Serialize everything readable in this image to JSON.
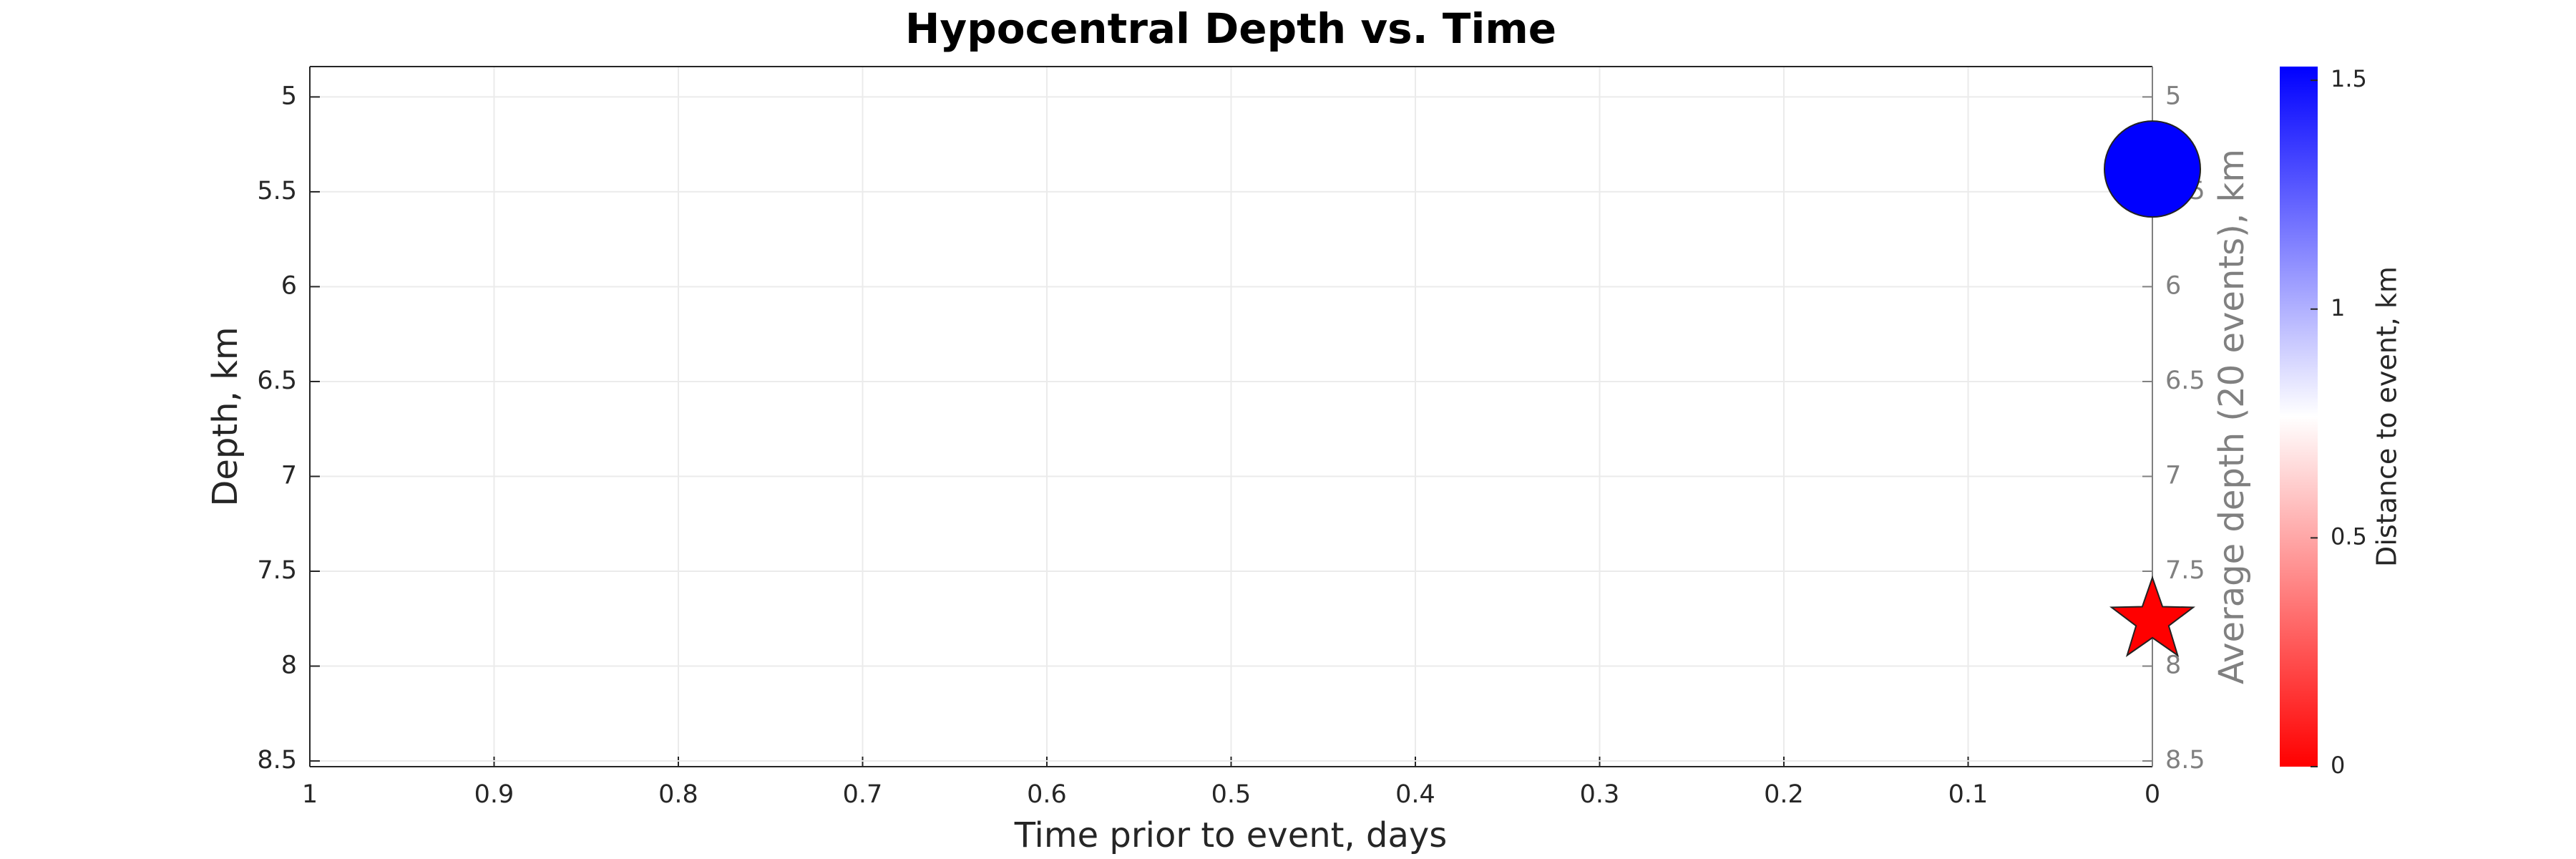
{
  "chart_data": {
    "type": "scatter",
    "title": "Hypocentral Depth vs. Time",
    "xlabel": "Time prior to event, days",
    "ylabel": "Depth, km",
    "y2label": "Average depth (20 events), km",
    "x": [
      0,
      0
    ],
    "values": [
      5.38,
      7.76
    ],
    "distance": [
      1.53,
      0
    ],
    "markers": [
      "circle",
      "star"
    ],
    "xlim": [
      1,
      0
    ],
    "xticks": [
      1,
      0.9,
      0.8,
      0.7,
      0.6,
      0.5,
      0.4,
      0.3,
      0.2,
      0.1,
      0
    ],
    "ylim": [
      4.84,
      8.53
    ],
    "yticks": [
      5,
      5.5,
      6,
      6.5,
      7,
      7.5,
      8,
      8.5
    ],
    "y2lim": [
      4.84,
      8.53
    ],
    "y2ticks": [
      5,
      5.5,
      6,
      6.5,
      7,
      7.5,
      8,
      8.5
    ],
    "grid": true,
    "colorbar": {
      "label": "Distance to event, km",
      "lim": [
        0,
        1.53
      ],
      "ticks": [
        0,
        0.5,
        1,
        1.5
      ],
      "colors": [
        "#ff0000",
        "#ffffff",
        "#0000ff"
      ]
    }
  }
}
